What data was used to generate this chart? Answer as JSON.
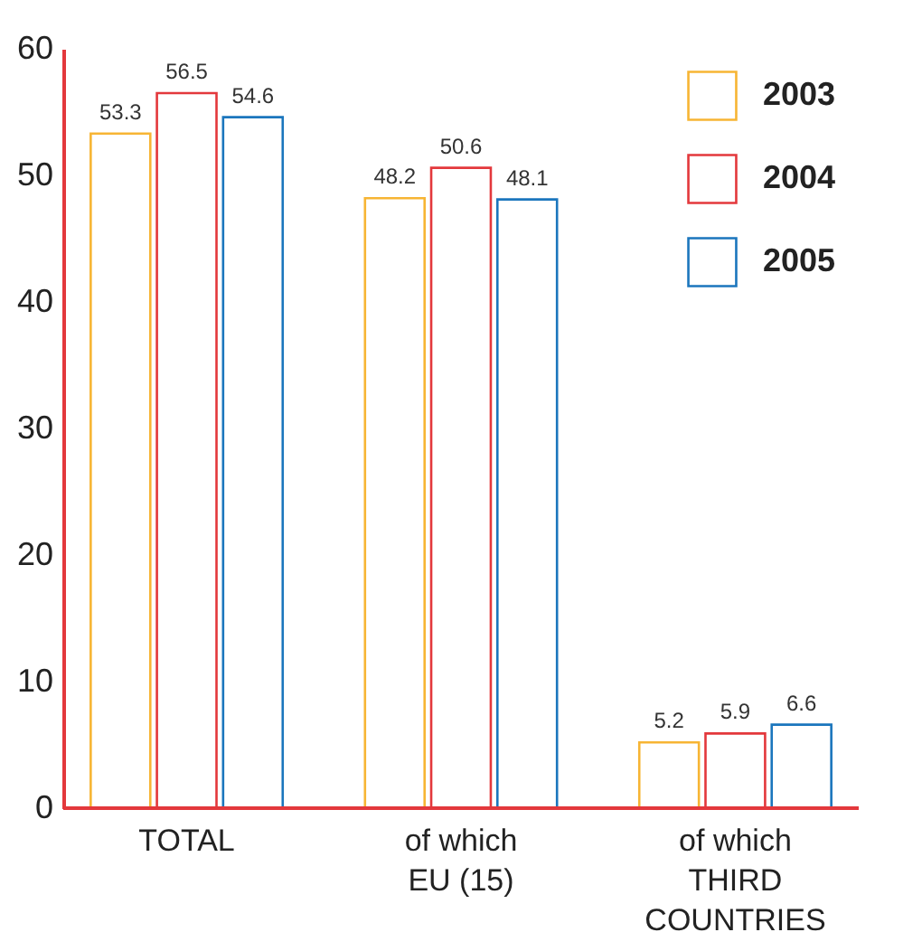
{
  "chart_data": {
    "type": "bar",
    "categories": [
      "TOTAL",
      "of which\nEU (15)",
      "of which\nTHIRD\nCOUNTRIES"
    ],
    "series": [
      {
        "name": "2003",
        "color": "#f7b534",
        "values": [
          53.3,
          48.2,
          5.2
        ]
      },
      {
        "name": "2004",
        "color": "#e3383c",
        "values": [
          56.5,
          50.6,
          5.9
        ]
      },
      {
        "name": "2005",
        "color": "#1b76bd",
        "values": [
          54.6,
          48.1,
          6.6
        ]
      }
    ],
    "ylim": [
      0,
      60
    ],
    "yticks": [
      0,
      10,
      20,
      30,
      40,
      50,
      60
    ],
    "grid": false,
    "legend": "top right",
    "data_labels": true
  }
}
